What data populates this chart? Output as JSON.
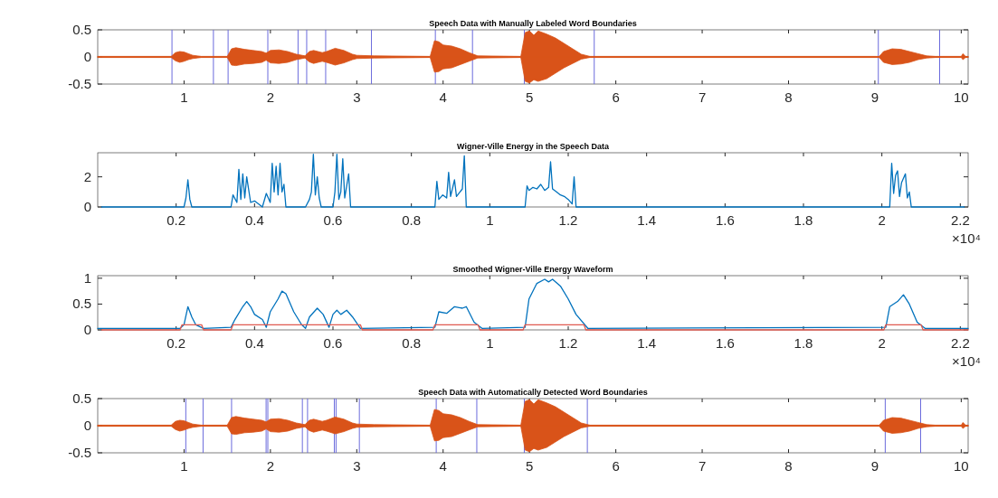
{
  "chart_data": [
    {
      "type": "line",
      "title": "Speech Data with Manually Labeled Word Boundaries",
      "xlim": [
        0,
        10.08
      ],
      "xticks": [
        1,
        2,
        3,
        4,
        5,
        6,
        7,
        8,
        9,
        10
      ],
      "ylim": [
        -0.5,
        0.5
      ],
      "yticks": [
        -0.5,
        0,
        0.5
      ],
      "series": [
        {
          "color": "#d95319",
          "x": [
            0,
            0.85,
            0.9,
            0.95,
            1.0,
            1.05,
            1.1,
            1.2,
            1.5,
            1.55,
            1.6,
            1.7,
            1.8,
            1.9,
            1.95,
            2.0,
            2.1,
            2.2,
            2.3,
            2.4,
            2.45,
            2.5,
            2.6,
            2.65,
            2.75,
            2.85,
            2.95,
            3.0,
            3.2,
            3.85,
            3.9,
            3.95,
            4.0,
            4.1,
            4.2,
            4.3,
            4.4,
            4.9,
            4.95,
            5.0,
            5.05,
            5.1,
            5.2,
            5.3,
            5.4,
            5.5,
            5.6,
            5.7,
            9.05,
            9.1,
            9.2,
            9.3,
            9.4,
            9.5,
            9.6,
            9.7,
            10.0,
            10.02,
            10.05,
            10.08
          ],
          "values": [
            0,
            0,
            0,
            0,
            0,
            0,
            0,
            0,
            0,
            0,
            0,
            0,
            0,
            0,
            0,
            0,
            0,
            0,
            0,
            0,
            0,
            0,
            0,
            0,
            0,
            0,
            0,
            0,
            0,
            0,
            0,
            0,
            0,
            0,
            0,
            0,
            0,
            0,
            0,
            0,
            0,
            0,
            0,
            0,
            0,
            0,
            0,
            0,
            0,
            0,
            0,
            0,
            0,
            0,
            0,
            0,
            0,
            0,
            0,
            0
          ],
          "upper": [
            0.01,
            0.01,
            0.08,
            0.1,
            0.09,
            0.06,
            0.03,
            0.01,
            0.01,
            0.15,
            0.17,
            0.14,
            0.12,
            0.1,
            0.07,
            0.12,
            0.13,
            0.1,
            0.05,
            0.02,
            0.1,
            0.12,
            0.08,
            0.1,
            0.16,
            0.12,
            0.05,
            0.03,
            0.02,
            0.01,
            0.3,
            0.28,
            0.22,
            0.2,
            0.15,
            0.08,
            0.02,
            0.01,
            0.45,
            0.48,
            0.4,
            0.48,
            0.42,
            0.35,
            0.25,
            0.15,
            0.05,
            0.01,
            0.01,
            0.1,
            0.15,
            0.14,
            0.1,
            0.06,
            0.02,
            0.01,
            0.01,
            0.06,
            0.01,
            0.01
          ],
          "lower": [
            -0.01,
            -0.01,
            -0.07,
            -0.1,
            -0.08,
            -0.05,
            -0.03,
            -0.01,
            -0.01,
            -0.15,
            -0.16,
            -0.13,
            -0.12,
            -0.1,
            -0.06,
            -0.11,
            -0.12,
            -0.1,
            -0.05,
            -0.02,
            -0.09,
            -0.12,
            -0.08,
            -0.1,
            -0.15,
            -0.11,
            -0.05,
            -0.03,
            -0.02,
            -0.01,
            -0.28,
            -0.27,
            -0.22,
            -0.2,
            -0.14,
            -0.08,
            -0.02,
            -0.01,
            -0.45,
            -0.48,
            -0.42,
            -0.45,
            -0.4,
            -0.3,
            -0.2,
            -0.12,
            -0.04,
            -0.01,
            -0.01,
            -0.1,
            -0.14,
            -0.13,
            -0.1,
            -0.05,
            -0.02,
            -0.01,
            -0.01,
            -0.05,
            -0.01,
            -0.01
          ]
        }
      ],
      "ref_lines": [
        {
          "axis": "x",
          "value": 0.86,
          "color": "#6b6bdc"
        },
        {
          "axis": "x",
          "value": 1.34,
          "color": "#6b6bdc"
        },
        {
          "axis": "x",
          "value": 1.51,
          "color": "#6b6bdc"
        },
        {
          "axis": "x",
          "value": 1.97,
          "color": "#6b6bdc"
        },
        {
          "axis": "x",
          "value": 2.32,
          "color": "#6b6bdc"
        },
        {
          "axis": "x",
          "value": 2.42,
          "color": "#6b6bdc"
        },
        {
          "axis": "x",
          "value": 2.64,
          "color": "#6b6bdc"
        },
        {
          "axis": "x",
          "value": 3.17,
          "color": "#6b6bdc"
        },
        {
          "axis": "x",
          "value": 3.91,
          "color": "#6b6bdc"
        },
        {
          "axis": "x",
          "value": 4.34,
          "color": "#6b6bdc"
        },
        {
          "axis": "x",
          "value": 4.94,
          "color": "#6b6bdc"
        },
        {
          "axis": "x",
          "value": 5.75,
          "color": "#6b6bdc"
        },
        {
          "axis": "x",
          "value": 9.04,
          "color": "#6b6bdc"
        },
        {
          "axis": "x",
          "value": 9.75,
          "color": "#6b6bdc"
        }
      ]
    },
    {
      "type": "line",
      "title": "Wigner-Ville Energy in the Speech Data",
      "xlim": [
        0,
        2.22
      ],
      "xticks": [
        0.2,
        0.4,
        0.6,
        0.8,
        1,
        1.2,
        1.4,
        1.6,
        1.8,
        2,
        2.2
      ],
      "ylim": [
        0,
        3.6
      ],
      "yticks": [
        0,
        2
      ],
      "annotations": [
        "×10⁴"
      ],
      "series": [
        {
          "color": "#0072bd",
          "x": [
            0.01,
            0.22,
            0.225,
            0.23,
            0.235,
            0.24,
            0.34,
            0.345,
            0.355,
            0.36,
            0.365,
            0.37,
            0.375,
            0.38,
            0.39,
            0.4,
            0.42,
            0.43,
            0.44,
            0.445,
            0.45,
            0.455,
            0.46,
            0.465,
            0.47,
            0.475,
            0.48,
            0.53,
            0.54,
            0.545,
            0.55,
            0.555,
            0.56,
            0.565,
            0.57,
            0.6,
            0.605,
            0.61,
            0.615,
            0.62,
            0.625,
            0.63,
            0.64,
            0.645,
            0.86,
            0.865,
            0.87,
            0.88,
            0.89,
            0.895,
            0.9,
            0.91,
            0.915,
            0.93,
            0.935,
            0.94,
            1.09,
            1.095,
            1.1,
            1.11,
            1.12,
            1.13,
            1.14,
            1.15,
            1.155,
            1.16,
            1.17,
            1.18,
            1.19,
            1.2,
            1.21,
            1.215,
            1.22,
            2.02,
            2.025,
            2.03,
            2.035,
            2.04,
            2.045,
            2.05,
            2.06,
            2.065,
            2.07,
            2.075,
            2.21
          ],
          "values": [
            0,
            0,
            0.6,
            1.8,
            0.5,
            0,
            0,
            0.8,
            0.3,
            2.5,
            0.5,
            2.2,
            0.6,
            2.0,
            0.3,
            0.4,
            0,
            0.9,
            0.3,
            2.9,
            1.0,
            2.7,
            0.8,
            2.9,
            1.0,
            1.5,
            0,
            0,
            0.5,
            1.0,
            3.5,
            0.8,
            2.0,
            0.6,
            0,
            0,
            1.0,
            3.5,
            0.5,
            1.0,
            3.2,
            0.6,
            2.2,
            0,
            0,
            1.7,
            0.5,
            0.8,
            0.6,
            2.3,
            0.7,
            1.8,
            0.7,
            1.2,
            3.4,
            0,
            0,
            1.4,
            1.1,
            1.3,
            1.2,
            1.5,
            1.1,
            1.3,
            3.0,
            1.2,
            1.0,
            0.8,
            0.7,
            0.5,
            0.2,
            2.0,
            0,
            0,
            2.9,
            0.9,
            2.1,
            2.4,
            0.7,
            1.6,
            2.2,
            0.6,
            1.0,
            0,
            0
          ]
        }
      ]
    },
    {
      "type": "line",
      "title": "Smoothed Wigner-Ville Energy Waveform",
      "xlim": [
        0,
        2.22
      ],
      "xticks": [
        0.2,
        0.4,
        0.6,
        0.8,
        1,
        1.2,
        1.4,
        1.6,
        1.8,
        2,
        2.2
      ],
      "ylim": [
        0,
        1.05
      ],
      "yticks": [
        0,
        0.5,
        1
      ],
      "annotations": [
        "×10⁴"
      ],
      "series": [
        {
          "color": "#0072bd",
          "x": [
            0,
            0.21,
            0.22,
            0.23,
            0.24,
            0.25,
            0.27,
            0.34,
            0.35,
            0.37,
            0.38,
            0.39,
            0.4,
            0.42,
            0.43,
            0.44,
            0.46,
            0.47,
            0.48,
            0.5,
            0.52,
            0.53,
            0.54,
            0.56,
            0.575,
            0.59,
            0.6,
            0.61,
            0.62,
            0.635,
            0.65,
            0.67,
            0.86,
            0.87,
            0.89,
            0.91,
            0.93,
            0.94,
            0.96,
            0.98,
            1.09,
            1.1,
            1.12,
            1.14,
            1.15,
            1.16,
            1.18,
            1.2,
            1.22,
            1.25,
            2.01,
            2.02,
            2.04,
            2.055,
            2.07,
            2.09,
            2.11,
            2.22
          ],
          "values": [
            0.03,
            0.03,
            0.1,
            0.45,
            0.25,
            0.1,
            0.03,
            0.05,
            0.2,
            0.45,
            0.55,
            0.45,
            0.3,
            0.2,
            0.05,
            0.35,
            0.6,
            0.75,
            0.7,
            0.35,
            0.1,
            0.03,
            0.25,
            0.42,
            0.3,
            0.05,
            0.3,
            0.38,
            0.3,
            0.38,
            0.25,
            0.03,
            0.05,
            0.35,
            0.32,
            0.45,
            0.42,
            0.45,
            0.15,
            0.03,
            0.05,
            0.6,
            0.9,
            0.98,
            0.93,
            0.98,
            0.85,
            0.6,
            0.3,
            0.03,
            0.05,
            0.45,
            0.55,
            0.68,
            0.5,
            0.15,
            0.03,
            0.03
          ]
        },
        {
          "color": "#e05a50",
          "x": [
            0.01,
            0.21,
            0.215,
            0.265,
            0.27,
            0.34,
            0.345,
            0.53,
            0.535,
            0.67,
            0.675,
            0.855,
            0.86,
            0.97,
            0.975,
            1.085,
            1.09,
            1.24,
            1.245,
            2.005,
            2.01,
            2.1,
            2.105,
            2.22
          ],
          "values": [
            0,
            0,
            0.1,
            0.1,
            0,
            0,
            0.1,
            0.1,
            0.1,
            0.1,
            0,
            0,
            0.1,
            0.1,
            0,
            0,
            0.1,
            0.1,
            0,
            0,
            0.1,
            0.1,
            0,
            0
          ]
        }
      ]
    },
    {
      "type": "line",
      "title": "Speech Data with Automatically Detected Word Boundaries",
      "xlim": [
        0,
        10.08
      ],
      "xticks": [
        1,
        2,
        3,
        4,
        5,
        6,
        7,
        8,
        9,
        10
      ],
      "ylim": [
        -0.5,
        0.5
      ],
      "yticks": [
        -0.5,
        0,
        0.5
      ],
      "series": [
        {
          "color": "#d95319",
          "x": [
            0,
            0.85,
            0.9,
            0.95,
            1.0,
            1.05,
            1.1,
            1.2,
            1.5,
            1.55,
            1.6,
            1.7,
            1.8,
            1.9,
            1.95,
            2.0,
            2.1,
            2.2,
            2.3,
            2.4,
            2.45,
            2.5,
            2.6,
            2.65,
            2.75,
            2.85,
            2.95,
            3.0,
            3.2,
            3.85,
            3.9,
            3.95,
            4.0,
            4.1,
            4.2,
            4.3,
            4.4,
            4.9,
            4.95,
            5.0,
            5.05,
            5.1,
            5.2,
            5.3,
            5.4,
            5.5,
            5.6,
            5.7,
            9.05,
            9.1,
            9.2,
            9.3,
            9.4,
            9.5,
            9.6,
            9.7,
            10.0,
            10.02,
            10.05,
            10.08
          ],
          "values": [
            0,
            0,
            0,
            0,
            0,
            0,
            0,
            0,
            0,
            0,
            0,
            0,
            0,
            0,
            0,
            0,
            0,
            0,
            0,
            0,
            0,
            0,
            0,
            0,
            0,
            0,
            0,
            0,
            0,
            0,
            0,
            0,
            0,
            0,
            0,
            0,
            0,
            0,
            0,
            0,
            0,
            0,
            0,
            0,
            0,
            0,
            0,
            0,
            0,
            0,
            0,
            0,
            0,
            0,
            0,
            0,
            0,
            0,
            0,
            0
          ],
          "upper": [
            0.01,
            0.01,
            0.08,
            0.1,
            0.09,
            0.06,
            0.03,
            0.01,
            0.01,
            0.15,
            0.17,
            0.14,
            0.12,
            0.1,
            0.07,
            0.12,
            0.13,
            0.1,
            0.05,
            0.02,
            0.1,
            0.12,
            0.08,
            0.1,
            0.16,
            0.12,
            0.05,
            0.03,
            0.02,
            0.01,
            0.3,
            0.28,
            0.22,
            0.2,
            0.15,
            0.08,
            0.02,
            0.01,
            0.45,
            0.48,
            0.4,
            0.48,
            0.42,
            0.35,
            0.25,
            0.15,
            0.05,
            0.01,
            0.01,
            0.1,
            0.15,
            0.14,
            0.1,
            0.06,
            0.02,
            0.01,
            0.01,
            0.06,
            0.01,
            0.01
          ],
          "lower": [
            -0.01,
            -0.01,
            -0.07,
            -0.1,
            -0.08,
            -0.05,
            -0.03,
            -0.01,
            -0.01,
            -0.15,
            -0.16,
            -0.13,
            -0.12,
            -0.1,
            -0.06,
            -0.11,
            -0.12,
            -0.1,
            -0.05,
            -0.02,
            -0.09,
            -0.12,
            -0.08,
            -0.1,
            -0.15,
            -0.11,
            -0.05,
            -0.03,
            -0.02,
            -0.01,
            -0.28,
            -0.27,
            -0.22,
            -0.2,
            -0.14,
            -0.08,
            -0.02,
            -0.01,
            -0.45,
            -0.48,
            -0.42,
            -0.45,
            -0.4,
            -0.3,
            -0.2,
            -0.12,
            -0.04,
            -0.01,
            -0.01,
            -0.1,
            -0.14,
            -0.13,
            -0.1,
            -0.05,
            -0.02,
            -0.01,
            -0.01,
            -0.05,
            -0.01,
            -0.01
          ]
        }
      ],
      "ref_lines": [
        {
          "axis": "x",
          "value": 1.02,
          "color": "#6b6bdc"
        },
        {
          "axis": "x",
          "value": 1.22,
          "color": "#6b6bdc"
        },
        {
          "axis": "x",
          "value": 1.55,
          "color": "#6b6bdc"
        },
        {
          "axis": "x",
          "value": 1.95,
          "color": "#6b6bdc"
        },
        {
          "axis": "x",
          "value": 1.97,
          "color": "#6b6bdc"
        },
        {
          "axis": "x",
          "value": 2.37,
          "color": "#6b6bdc"
        },
        {
          "axis": "x",
          "value": 2.43,
          "color": "#6b6bdc"
        },
        {
          "axis": "x",
          "value": 2.74,
          "color": "#6b6bdc"
        },
        {
          "axis": "x",
          "value": 2.76,
          "color": "#6b6bdc"
        },
        {
          "axis": "x",
          "value": 3.03,
          "color": "#6b6bdc"
        },
        {
          "axis": "x",
          "value": 3.92,
          "color": "#6b6bdc"
        },
        {
          "axis": "x",
          "value": 4.39,
          "color": "#6b6bdc"
        },
        {
          "axis": "x",
          "value": 4.94,
          "color": "#6b6bdc"
        },
        {
          "axis": "x",
          "value": 5.67,
          "color": "#6b6bdc"
        },
        {
          "axis": "x",
          "value": 9.12,
          "color": "#6b6bdc"
        },
        {
          "axis": "x",
          "value": 9.53,
          "color": "#6b6bdc"
        }
      ]
    }
  ]
}
